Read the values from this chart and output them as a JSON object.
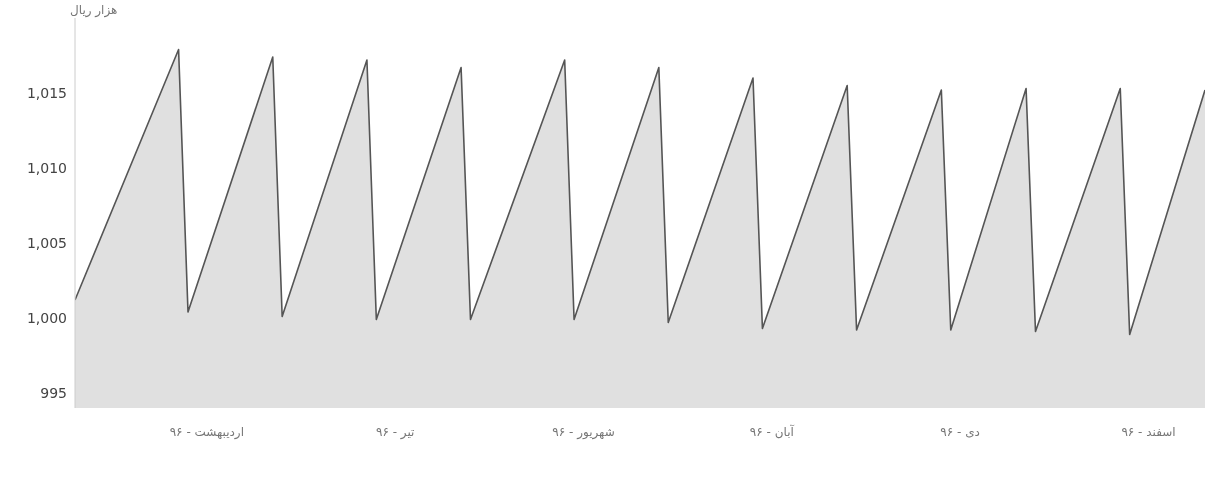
{
  "chart_data": {
    "type": "area",
    "ylabel": "هزار ریال",
    "ylim": [
      994,
      1020
    ],
    "yticks": [
      995,
      {
        "value": 1000,
        "label": "1,000"
      },
      {
        "value": 1005,
        "label": "1,005"
      },
      {
        "value": 1010,
        "label": "1,010"
      },
      {
        "value": 1015,
        "label": "1,015"
      }
    ],
    "categories": [
      null,
      null,
      null,
      null,
      null,
      null,
      null,
      null,
      null,
      null,
      null,
      null,
      null,
      null,
      "اردیبهشت - ۹۶",
      null,
      null,
      null,
      null,
      null,
      null,
      null,
      null,
      null,
      null,
      null,
      null,
      null,
      null,
      null,
      null,
      null,
      null,
      null,
      "تیر - ۹۶",
      null,
      null,
      null,
      null,
      null,
      null,
      null,
      null,
      null,
      null,
      null,
      null,
      null,
      null,
      null,
      null,
      null,
      null,
      null,
      "شهریور - ۹۶",
      null,
      null,
      null,
      null,
      null,
      null,
      null,
      null,
      null,
      null,
      null,
      null,
      null,
      null,
      null,
      null,
      null,
      null,
      null,
      "آبان - ۹۶",
      null,
      null,
      null,
      null,
      null,
      null,
      null,
      null,
      null,
      null,
      null,
      null,
      null,
      null,
      null,
      null,
      null,
      null,
      null,
      "دی - ۹۶",
      null,
      null,
      null,
      null,
      null,
      null,
      null,
      null,
      null,
      null,
      null,
      null,
      null,
      null,
      null,
      null,
      null,
      null,
      null,
      "اسفند - ۹۶",
      null,
      null,
      null,
      null,
      null,
      null
    ],
    "series": [
      {
        "color": "#555555",
        "values": [
          1001.2,
          null,
          null,
          null,
          null,
          null,
          null,
          null,
          null,
          null,
          null,
          1017.9,
          1000.4,
          null,
          null,
          null,
          null,
          null,
          null,
          null,
          null,
          1017.4,
          1000.1,
          null,
          null,
          null,
          null,
          null,
          null,
          null,
          null,
          1017.2,
          999.9,
          null,
          null,
          null,
          null,
          null,
          null,
          null,
          null,
          1016.7,
          999.9,
          null,
          null,
          null,
          null,
          null,
          null,
          null,
          null,
          null,
          1017.2,
          999.9,
          null,
          null,
          null,
          null,
          null,
          null,
          null,
          null,
          1016.7,
          999.7,
          null,
          null,
          null,
          null,
          null,
          null,
          null,
          null,
          1016.0,
          999.3,
          null,
          null,
          null,
          null,
          null,
          null,
          null,
          null,
          1015.5,
          999.2,
          null,
          null,
          null,
          null,
          null,
          null,
          null,
          null,
          1015.2,
          999.2,
          null,
          null,
          null,
          null,
          null,
          null,
          null,
          1015.3,
          999.1,
          null,
          null,
          null,
          null,
          null,
          null,
          null,
          null,
          1015.3,
          998.9,
          null,
          null,
          null,
          null,
          null,
          null,
          null,
          1015.2
        ]
      }
    ]
  }
}
